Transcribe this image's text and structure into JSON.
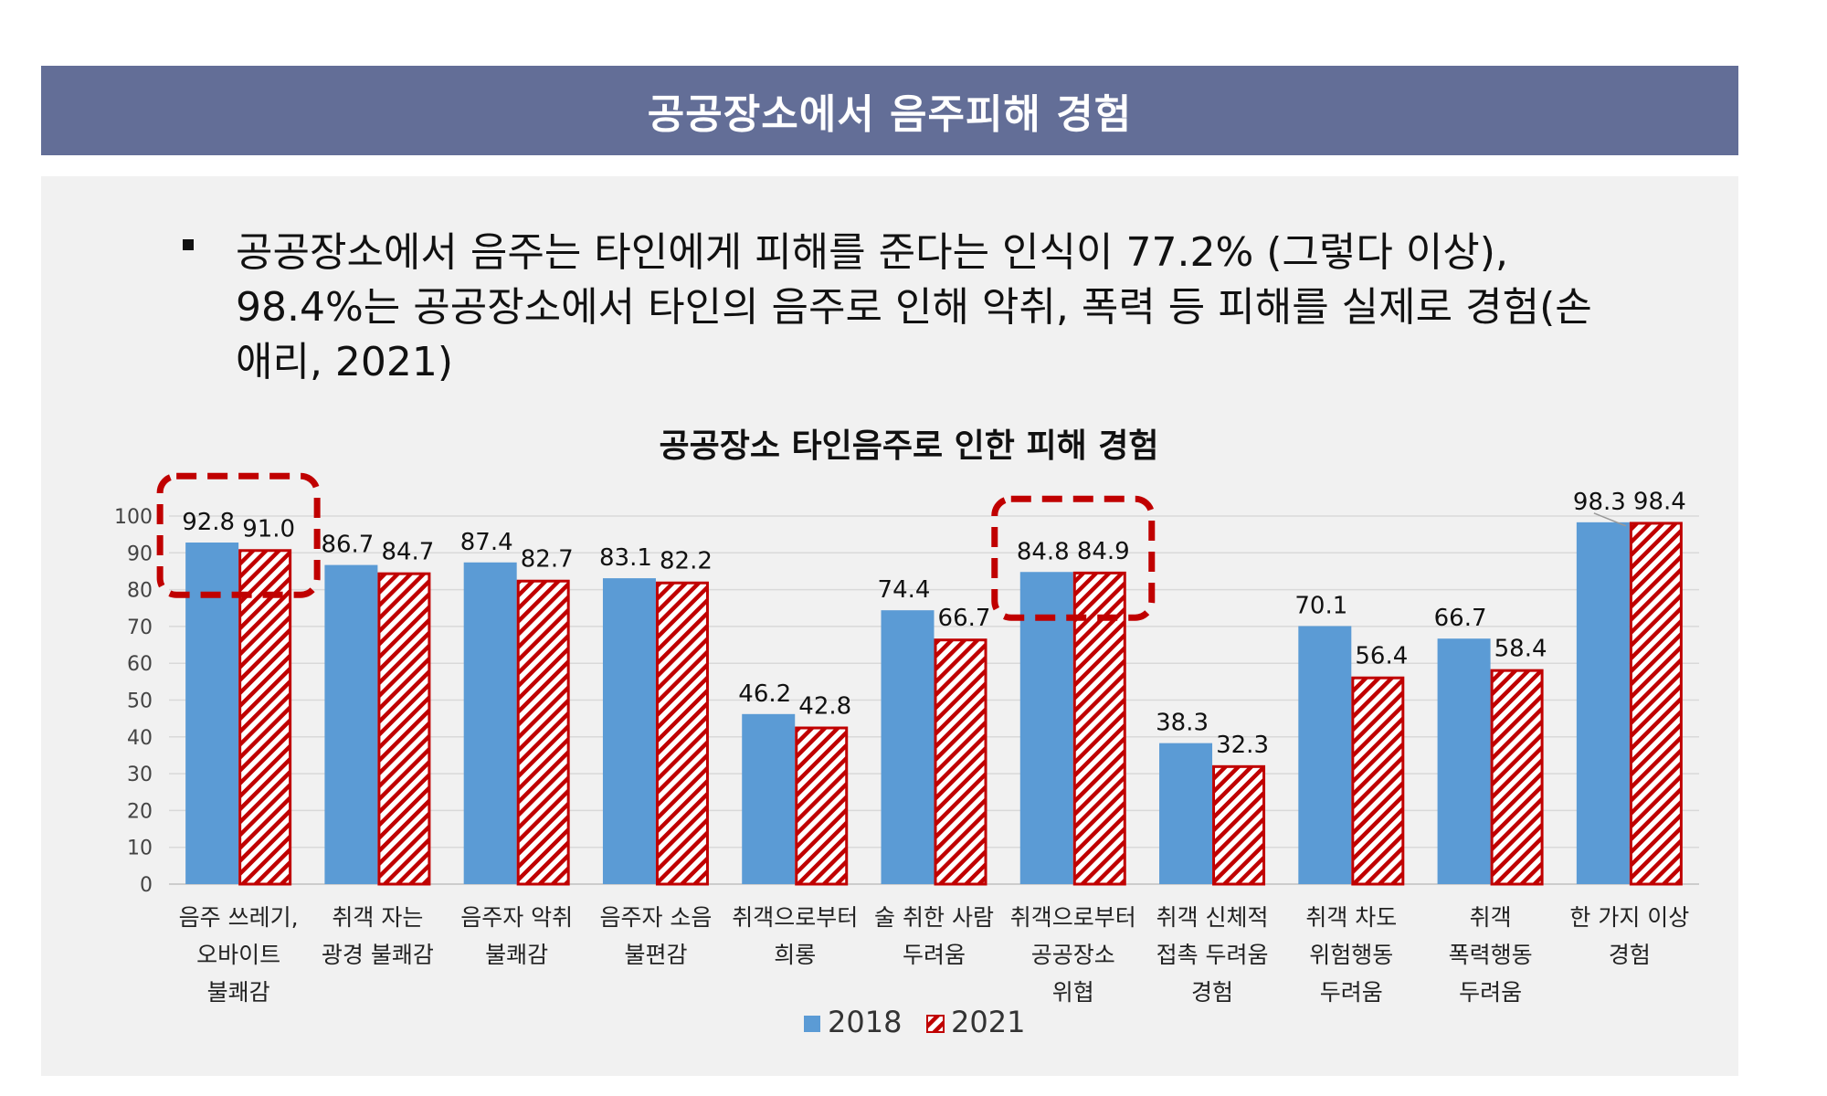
{
  "header": {
    "title": "공공장소에서 음주피해 경험"
  },
  "summary": {
    "lines": [
      "공공장소에서 음주는 타인에게 피해를 준다는 인식이 77.2% (그렇다 이상),",
      "98.4%는 공공장소에서 타인의 음주로 인해 악취, 폭력 등 피해를 실제로 경험(손",
      "애리, 2021)"
    ]
  },
  "colors": {
    "header_bg": "#636e97",
    "series_2018": "#5b9bd5",
    "series_2021": "#c00000",
    "highlight": "#c00000"
  },
  "chart_data": {
    "type": "bar",
    "title": "공공장소 타인음주로 인한 피해 경험",
    "categories": [
      [
        "음주 쓰레기,",
        "오바이트",
        "불쾌감"
      ],
      [
        "취객 자는",
        "광경 불쾌감"
      ],
      [
        "음주자 악취",
        "불쾌감"
      ],
      [
        "음주자 소음",
        "불편감"
      ],
      [
        "취객으로부터",
        "희롱"
      ],
      [
        "술 취한 사람",
        "두려움"
      ],
      [
        "취객으로부터",
        "공공장소",
        "위협"
      ],
      [
        "취객 신체적",
        "접촉 두려움",
        "경험"
      ],
      [
        "취객 차도",
        "위험행동",
        "두려움"
      ],
      [
        "취객",
        "폭력행동",
        "두려움"
      ],
      [
        "한 가지 이상",
        "경험"
      ]
    ],
    "series": [
      {
        "name": "2018",
        "values": [
          92.8,
          86.7,
          87.4,
          83.1,
          46.2,
          74.4,
          84.8,
          38.3,
          70.1,
          66.7,
          98.3
        ],
        "labels": [
          "92.8",
          "86.7",
          "87.4",
          "83.1",
          "46.2",
          "74.4",
          "84.8",
          "38.3",
          "70.1",
          "66.7",
          "98.3"
        ]
      },
      {
        "name": "2021",
        "values": [
          91.0,
          84.7,
          82.7,
          82.2,
          42.8,
          66.7,
          84.9,
          32.3,
          56.4,
          58.4,
          98.4
        ],
        "labels": [
          "91.0",
          "84.7",
          "82.7",
          "82.2",
          "42.8",
          "66.7",
          "84.9",
          "32.3",
          "56.4",
          "58.4",
          "98.4"
        ]
      }
    ],
    "yticks": [
      "0",
      "10",
      "20",
      "30",
      "40",
      "50",
      "60",
      "70",
      "80",
      "90",
      "100"
    ],
    "ylim": [
      0,
      100
    ],
    "grid": true,
    "legend": "bottom",
    "highlighted_categories": [
      0,
      6
    ]
  }
}
